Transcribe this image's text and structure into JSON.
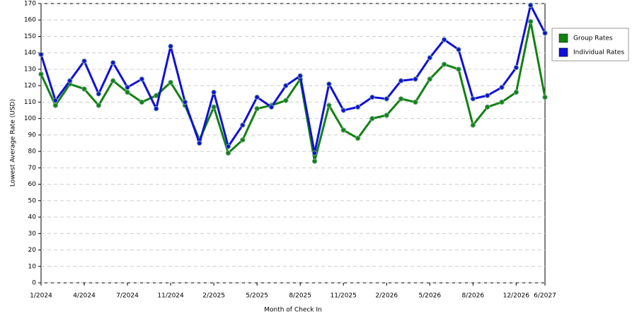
{
  "chart_data": {
    "type": "line",
    "x_label": "Month of Check In",
    "y_label": "Lowest Average Rate (USD)",
    "categories": [
      "1/2024",
      null,
      null,
      "4/2024",
      null,
      null,
      "7/2024",
      null,
      null,
      "11/2024",
      null,
      null,
      "2/2025",
      null,
      null,
      "5/2025",
      null,
      null,
      "8/2025",
      null,
      null,
      "11/2025",
      null,
      null,
      "2/2026",
      null,
      null,
      "5/2026",
      null,
      null,
      "8/2026",
      null,
      null,
      "12/2026",
      null,
      "6/2027"
    ],
    "series": [
      {
        "name": "Group Rates",
        "color": "#128212",
        "values": [
          127,
          108,
          121,
          118,
          108,
          123,
          116,
          110,
          114,
          122,
          108,
          87,
          107,
          79,
          87,
          106,
          108,
          111,
          124,
          74,
          108,
          93,
          88,
          100,
          102,
          112,
          110,
          124,
          133,
          130,
          96,
          107,
          110,
          116,
          159,
          113
        ]
      },
      {
        "name": "Individual Rates",
        "color": "#1010d8",
        "values": [
          139,
          111,
          123,
          135,
          115,
          134,
          119,
          124,
          106,
          144,
          110,
          85,
          116,
          83,
          96,
          113,
          107,
          120,
          126,
          79,
          121,
          105,
          107,
          113,
          112,
          123,
          124,
          137,
          148,
          142,
          112,
          114,
          119,
          131,
          169,
          152
        ]
      }
    ],
    "ylim": [
      0,
      170
    ],
    "yticks": [
      0,
      10,
      20,
      30,
      40,
      50,
      60,
      70,
      80,
      90,
      100,
      110,
      120,
      130,
      140,
      150,
      160,
      170
    ],
    "grid": true,
    "legend": "right"
  }
}
